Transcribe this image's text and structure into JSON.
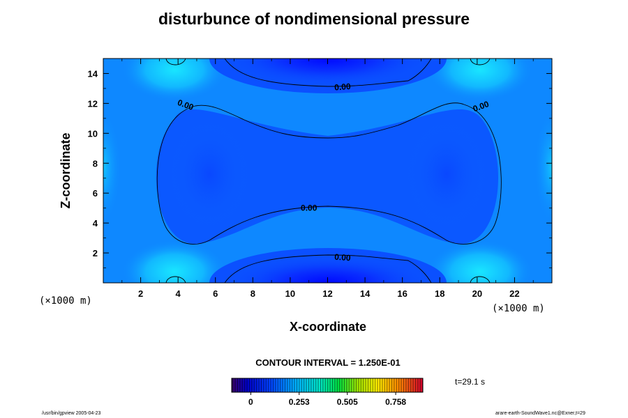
{
  "chart_data": {
    "type": "contour",
    "title": "disturbunce of nondimensional pressure",
    "xlabel": "X-coordinate",
    "ylabel": "Z-coordinate",
    "x_unit": "(×1000 m)",
    "z_unit": "(×1000 m)",
    "xlim": [
      0,
      24
    ],
    "ylim": [
      0,
      15
    ],
    "x_ticks": [
      2,
      4,
      6,
      8,
      10,
      12,
      14,
      16,
      18,
      20,
      22
    ],
    "y_ticks": [
      2,
      4,
      6,
      8,
      10,
      12,
      14
    ],
    "contour_labels": [
      {
        "text": "0.00",
        "x": 12.8,
        "z": 13.1
      },
      {
        "text": "0.00",
        "x": 4.4,
        "z": 11.9
      },
      {
        "text": "0.00",
        "x": 20.2,
        "z": 11.8
      },
      {
        "text": "0.00",
        "x": 11.0,
        "z": 5.0
      },
      {
        "text": "0.00",
        "x": 12.8,
        "z": 1.7
      }
    ],
    "contour_interval": "CONTOUR INTERVAL = 1.250E-01",
    "colorbar": {
      "ticks": [
        {
          "label": "0",
          "value": 0
        },
        {
          "label": "0.253",
          "value": 0.253
        },
        {
          "label": "0.505",
          "value": 0.505
        },
        {
          "label": "0.758",
          "value": 0.758
        }
      ],
      "min": -0.1,
      "max": 0.9
    },
    "time_label": "t=29.1 s"
  },
  "footer": {
    "left": "/usr/bin/gpview 2005-04-23",
    "right": "arare-earth-SoundWave1.nc@Exner,t=29"
  }
}
